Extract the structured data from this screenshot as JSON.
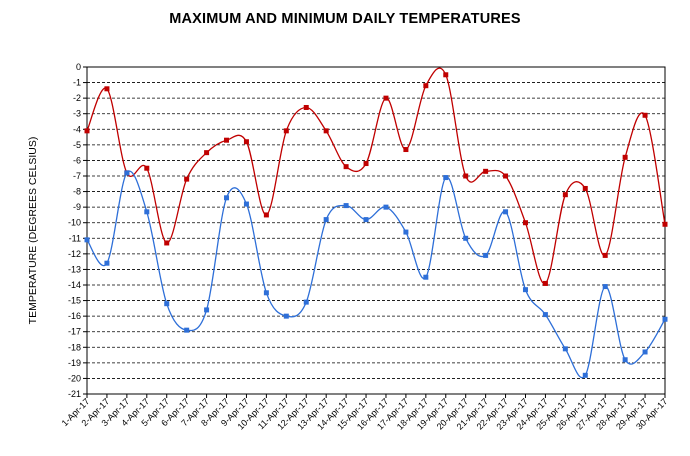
{
  "chart_data": {
    "type": "line",
    "title": "MAXIMUM AND MINIMUM DAILY TEMPERATURES",
    "xlabel": "",
    "ylabel": "TEMPERATURE (DEGREES CELSIUS)",
    "ylim": [
      -21,
      0
    ],
    "grid": true,
    "legend": "none",
    "categories": [
      "1-Apr-17",
      "2-Apr-17",
      "3-Apr-17",
      "4-Apr-17",
      "5-Apr-17",
      "6-Apr-17",
      "7-Apr-17",
      "8-Apr-17",
      "9-Apr-17",
      "10-Apr-17",
      "11-Apr-17",
      "12-Apr-17",
      "13-Apr-17",
      "14-Apr-17",
      "15-Apr-17",
      "16-Apr-17",
      "17-Apr-17",
      "18-Apr-17",
      "19-Apr-17",
      "20-Apr-17",
      "21-Apr-17",
      "22-Apr-17",
      "23-Apr-17",
      "24-Apr-17",
      "25-Apr-17",
      "26-Apr-17",
      "27-Apr-17",
      "28-Apr-17",
      "29-Apr-17",
      "30-Apr-17"
    ],
    "series": [
      {
        "color": "#c00000",
        "values": [
          -4.1,
          -1.4,
          -6.8,
          -6.5,
          -11.3,
          -7.2,
          -5.5,
          -4.7,
          -4.8,
          -9.5,
          -4.1,
          -2.6,
          -4.1,
          -6.4,
          -6.2,
          -2.0,
          -5.3,
          -1.2,
          -0.5,
          -7.0,
          -6.7,
          -7.0,
          -10.0,
          -13.9,
          -8.2,
          -7.8,
          -12.1,
          -5.8,
          -3.1,
          -10.1
        ]
      },
      {
        "color": "#2e6fd8",
        "values": [
          -11.1,
          -12.6,
          -6.8,
          -9.3,
          -15.2,
          -16.9,
          -15.6,
          -8.4,
          -8.8,
          -14.5,
          -16.0,
          -15.1,
          -9.8,
          -8.9,
          -9.8,
          -9.0,
          -10.6,
          -13.5,
          -7.1,
          -11.0,
          -12.1,
          -9.3,
          -14.3,
          -15.9,
          -18.1,
          -19.8,
          -14.1,
          -18.8,
          -18.3,
          -16.2
        ]
      }
    ]
  }
}
